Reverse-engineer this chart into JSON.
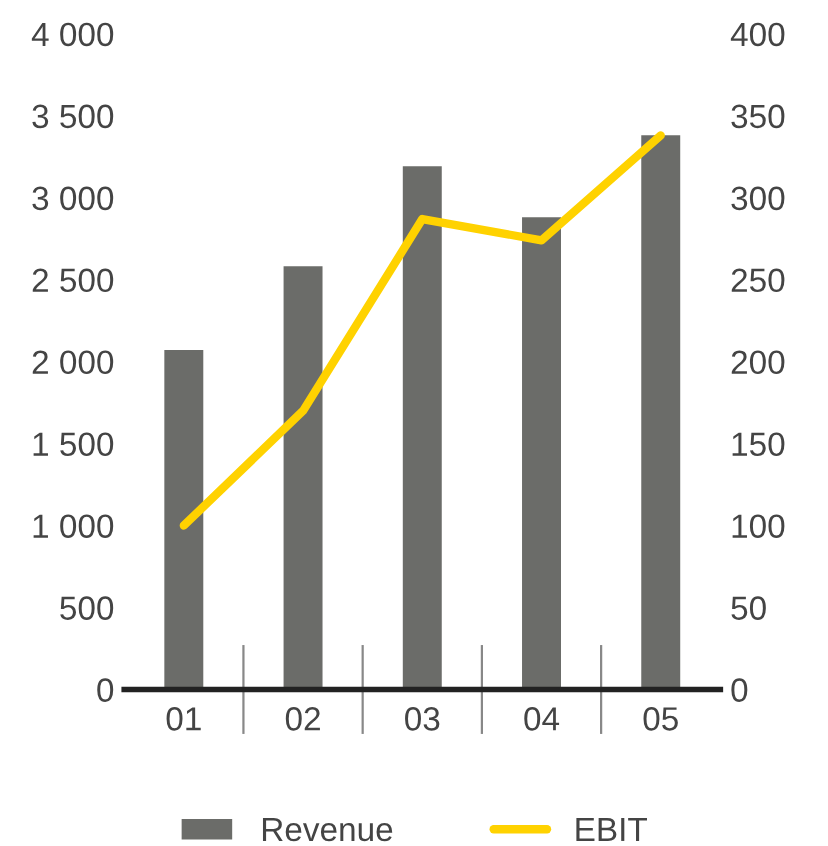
{
  "chart_data": {
    "type": "bar",
    "categories": [
      "01",
      "02",
      "03",
      "04",
      "05"
    ],
    "series": [
      {
        "name": "Revenue",
        "color": "#6b6c69",
        "values": [
          2080,
          2590,
          3200,
          2890,
          3390
        ]
      },
      {
        "name": "EBIT",
        "type": "line",
        "axis": "y2",
        "color": "#ffd200",
        "values": [
          100,
          170,
          287,
          274,
          338
        ]
      }
    ],
    "ylim": [
      0,
      4000
    ],
    "yticks": [
      0,
      {
        "value": 500,
        "label": "500"
      },
      {
        "value": 1000,
        "label": "1 000"
      },
      {
        "value": 1500,
        "label": "1 500"
      },
      {
        "value": 2000,
        "label": "2 000"
      },
      {
        "value": 2500,
        "label": "2 500"
      },
      {
        "value": 3000,
        "label": "3 000"
      },
      {
        "value": 3500,
        "label": "3 500"
      },
      {
        "value": 4000,
        "label": "4 000"
      }
    ],
    "y2lim": [
      0,
      400
    ],
    "y2ticks": [
      0,
      50,
      100,
      150,
      200,
      250,
      300,
      350,
      400
    ],
    "legend": "bottom",
    "grid": false
  }
}
